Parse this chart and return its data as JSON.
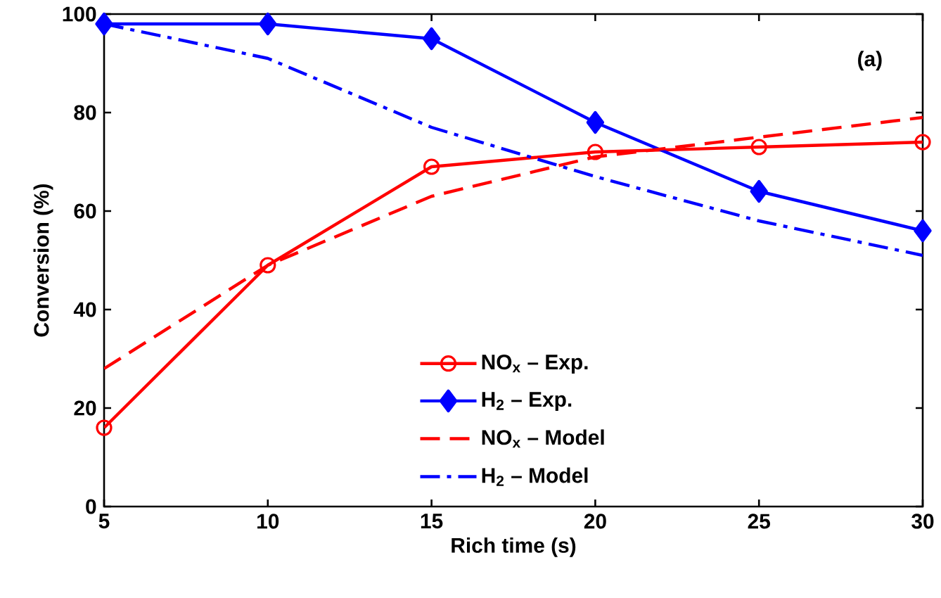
{
  "chart_data": {
    "type": "line",
    "xlabel": "Rich time (s)",
    "ylabel": "Conversion (%)",
    "x": [
      5,
      10,
      15,
      20,
      25,
      30
    ],
    "series": [
      {
        "name": "NO$_{x}$ – Exp.",
        "color": "#ff0000",
        "marker": "circle",
        "line_style": "solid",
        "values": [
          16,
          49,
          69,
          72,
          73,
          74
        ]
      },
      {
        "name": "H$_{2}$ – Exp.",
        "color": "#0000ff",
        "marker": "diamond",
        "line_style": "solid",
        "values": [
          98,
          98,
          95,
          78,
          64,
          56
        ]
      },
      {
        "name": "NO$_{x}$ – Model",
        "color": "#ff0000",
        "marker": "none",
        "line_style": "dashed",
        "values": [
          28,
          49,
          63,
          71,
          75,
          79
        ]
      },
      {
        "name": "H$_{2}$ – Model",
        "color": "#0000ff",
        "marker": "none",
        "line_style": "dashdot",
        "values": [
          98,
          91,
          77,
          67,
          58,
          51
        ]
      }
    ],
    "xlim": [
      5,
      30
    ],
    "ylim": [
      0,
      100
    ],
    "xticks": [
      5,
      10,
      15,
      20,
      25,
      30
    ],
    "yticks": [
      0,
      20,
      40,
      60,
      80,
      100
    ],
    "grid": false,
    "legend": "bottom",
    "annotations": [
      "(a)"
    ]
  }
}
